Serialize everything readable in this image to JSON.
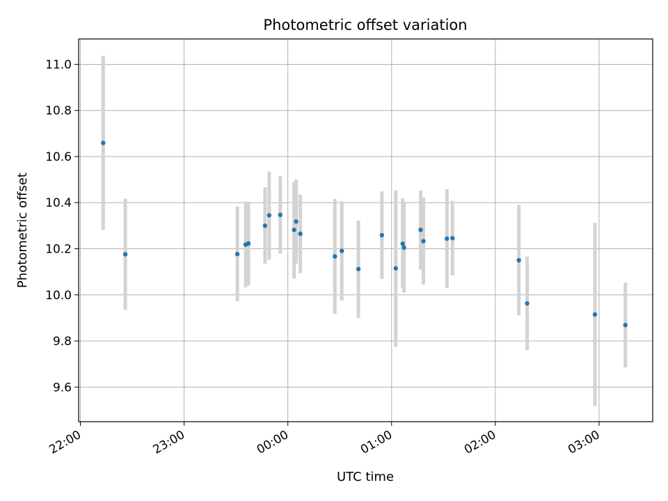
{
  "chart_data": {
    "type": "scatter",
    "title": "Photometric offset variation",
    "xlabel": "UTC time",
    "ylabel": "Photometric offset",
    "x_is_time": true,
    "xlim": [
      "21:59",
      "03:31"
    ],
    "ylim": [
      9.45,
      11.11
    ],
    "x_ticks": [
      "22:00",
      "23:00",
      "00:00",
      "01:00",
      "02:00",
      "03:00"
    ],
    "y_ticks": [
      9.6,
      9.8,
      10.0,
      10.2,
      10.4,
      10.6,
      10.8,
      11.0
    ],
    "grid": true,
    "legend": "none",
    "marker_color": "#1f77b4",
    "errorbar_color": "#d3d3d3",
    "points": [
      {
        "time": "22:13:12",
        "y": 10.659,
        "lo": 10.282,
        "hi": 11.037
      },
      {
        "time": "22:26:00",
        "y": 10.176,
        "lo": 9.935,
        "hi": 10.417
      },
      {
        "time": "23:30:48",
        "y": 10.177,
        "lo": 9.972,
        "hi": 10.383
      },
      {
        "time": "23:35:36",
        "y": 10.218,
        "lo": 10.032,
        "hi": 10.405
      },
      {
        "time": "23:37:12",
        "y": 10.223,
        "lo": 10.041,
        "hi": 10.404
      },
      {
        "time": "23:46:48",
        "y": 10.3,
        "lo": 10.135,
        "hi": 10.467
      },
      {
        "time": "23:49:12",
        "y": 10.345,
        "lo": 10.152,
        "hi": 10.535
      },
      {
        "time": "23:55:36",
        "y": 10.347,
        "lo": 10.179,
        "hi": 10.515
      },
      {
        "time": "00:03:36",
        "y": 10.282,
        "lo": 10.071,
        "hi": 10.49
      },
      {
        "time": "00:04:48",
        "y": 10.318,
        "lo": 10.136,
        "hi": 10.5
      },
      {
        "time": "00:07:12",
        "y": 10.265,
        "lo": 10.094,
        "hi": 10.435
      },
      {
        "time": "00:27:12",
        "y": 10.167,
        "lo": 9.918,
        "hi": 10.416
      },
      {
        "time": "00:31:12",
        "y": 10.191,
        "lo": 9.976,
        "hi": 10.406
      },
      {
        "time": "00:40:48",
        "y": 10.112,
        "lo": 9.9,
        "hi": 10.322
      },
      {
        "time": "00:54:24",
        "y": 10.259,
        "lo": 10.069,
        "hi": 10.449
      },
      {
        "time": "01:02:24",
        "y": 10.115,
        "lo": 9.775,
        "hi": 10.453
      },
      {
        "time": "01:06:24",
        "y": 10.222,
        "lo": 10.029,
        "hi": 10.418
      },
      {
        "time": "01:07:12",
        "y": 10.205,
        "lo": 10.01,
        "hi": 10.398
      },
      {
        "time": "01:16:48",
        "y": 10.282,
        "lo": 10.11,
        "hi": 10.452
      },
      {
        "time": "01:18:24",
        "y": 10.233,
        "lo": 10.045,
        "hi": 10.423
      },
      {
        "time": "01:32:00",
        "y": 10.244,
        "lo": 10.03,
        "hi": 10.459
      },
      {
        "time": "01:35:12",
        "y": 10.246,
        "lo": 10.085,
        "hi": 10.408
      },
      {
        "time": "02:13:36",
        "y": 10.15,
        "lo": 9.911,
        "hi": 10.391
      },
      {
        "time": "02:18:24",
        "y": 9.963,
        "lo": 9.76,
        "hi": 10.166
      },
      {
        "time": "02:57:36",
        "y": 9.915,
        "lo": 9.518,
        "hi": 10.312
      },
      {
        "time": "03:15:12",
        "y": 9.869,
        "lo": 9.685,
        "hi": 10.053
      }
    ]
  }
}
